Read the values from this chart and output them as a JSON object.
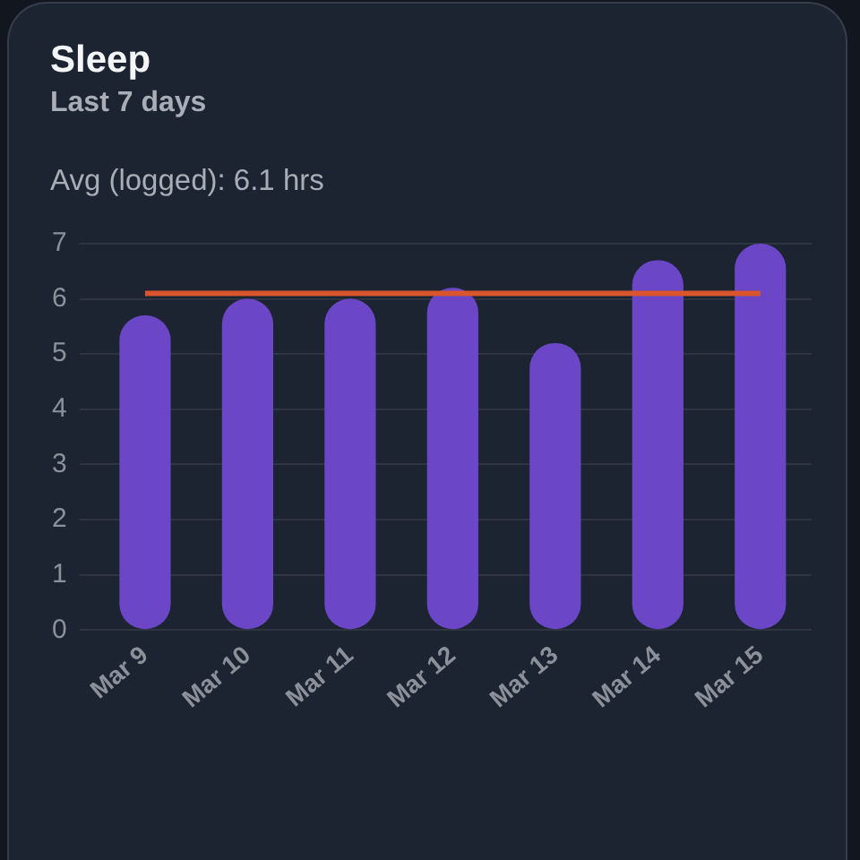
{
  "chart_data": {
    "type": "bar",
    "title": "Sleep",
    "subtitle": "Last 7 days",
    "annotations": [
      "Avg (logged): 6.1 hrs"
    ],
    "categories": [
      "Mar 9",
      "Mar 10",
      "Mar 11",
      "Mar 12",
      "Mar 13",
      "Mar 14",
      "Mar 15"
    ],
    "values": [
      5.7,
      6.0,
      6.0,
      6.2,
      5.2,
      6.7,
      7.0
    ],
    "color": "#6b47c7",
    "ylim": [
      0,
      7
    ],
    "yticks": [
      0,
      1,
      2,
      3,
      4,
      5,
      6,
      7
    ],
    "grid": "y",
    "ref_lines": [
      {
        "axis": "y",
        "value": 6.1,
        "color": "#d9552c"
      }
    ]
  }
}
